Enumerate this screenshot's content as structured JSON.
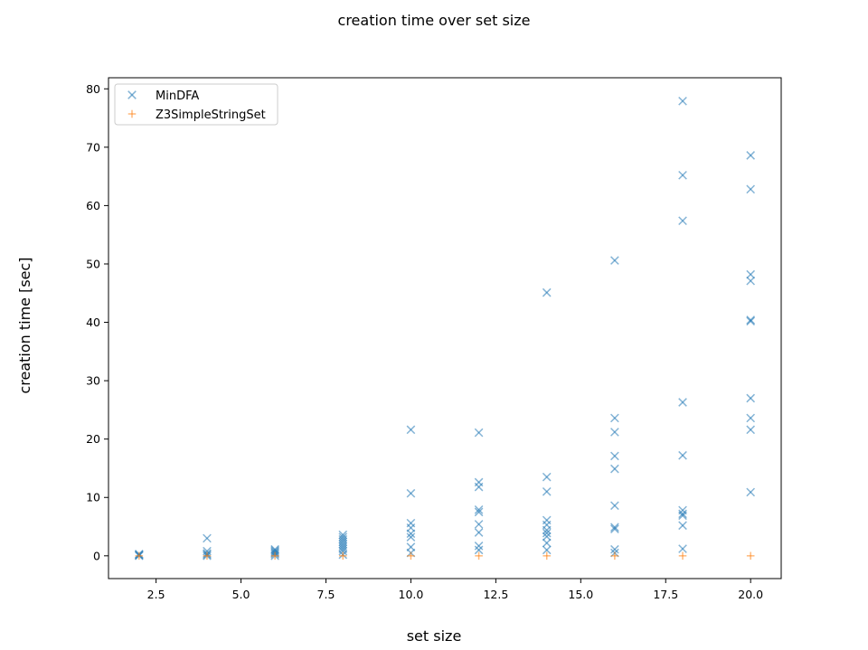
{
  "chart_data": {
    "type": "scatter",
    "title": "creation time over set size",
    "xlabel": "set size",
    "ylabel": "creation time [sec]",
    "xlim": [
      1.1,
      20.9
    ],
    "ylim": [
      -3.9,
      81.9
    ],
    "xticks": [
      2.5,
      5.0,
      7.5,
      10.0,
      12.5,
      15.0,
      17.5,
      20.0
    ],
    "xtick_labels": [
      "2.5",
      "5.0",
      "7.5",
      "10.0",
      "12.5",
      "15.0",
      "17.5",
      "20.0"
    ],
    "yticks": [
      0,
      10,
      20,
      30,
      40,
      50,
      60,
      70,
      80
    ],
    "ytick_labels": [
      "0",
      "10",
      "20",
      "30",
      "40",
      "50",
      "60",
      "70",
      "80"
    ],
    "grid": false,
    "legend_position": "top-left",
    "series": [
      {
        "name": "MinDFA",
        "marker": "x",
        "color": "#1f77b4",
        "points": [
          [
            2,
            0.0
          ],
          [
            2,
            0.1
          ],
          [
            2,
            0.2
          ],
          [
            2,
            0.3
          ],
          [
            4,
            0.0
          ],
          [
            4,
            0.2
          ],
          [
            4,
            0.4
          ],
          [
            4,
            0.8
          ],
          [
            4,
            3.0
          ],
          [
            6,
            0.0
          ],
          [
            6,
            0.3
          ],
          [
            6,
            0.5
          ],
          [
            6,
            0.7
          ],
          [
            6,
            0.9
          ],
          [
            6,
            1.1
          ],
          [
            8,
            0.2
          ],
          [
            8,
            0.8
          ],
          [
            8,
            1.2
          ],
          [
            8,
            1.6
          ],
          [
            8,
            2.0
          ],
          [
            8,
            2.4
          ],
          [
            8,
            2.8
          ],
          [
            8,
            3.2
          ],
          [
            8,
            3.6
          ],
          [
            10,
            0.5
          ],
          [
            10,
            1.5
          ],
          [
            10,
            3.2
          ],
          [
            10,
            3.8
          ],
          [
            10,
            4.8
          ],
          [
            10,
            5.6
          ],
          [
            10,
            10.7
          ],
          [
            10,
            21.6
          ],
          [
            12,
            1.0
          ],
          [
            12,
            1.7
          ],
          [
            12,
            4.0
          ],
          [
            12,
            5.4
          ],
          [
            12,
            7.5
          ],
          [
            12,
            7.9
          ],
          [
            12,
            11.8
          ],
          [
            12,
            12.6
          ],
          [
            12,
            21.1
          ],
          [
            14,
            1.0
          ],
          [
            14,
            2.2
          ],
          [
            14,
            3.3
          ],
          [
            14,
            3.9
          ],
          [
            14,
            4.4
          ],
          [
            14,
            5.3
          ],
          [
            14,
            6.1
          ],
          [
            14,
            11.0
          ],
          [
            14,
            13.5
          ],
          [
            14,
            45.1
          ],
          [
            16,
            0.5
          ],
          [
            16,
            1.1
          ],
          [
            16,
            4.6
          ],
          [
            16,
            4.9
          ],
          [
            16,
            8.6
          ],
          [
            16,
            14.9
          ],
          [
            16,
            17.1
          ],
          [
            16,
            21.2
          ],
          [
            16,
            23.6
          ],
          [
            16,
            50.6
          ],
          [
            18,
            1.2
          ],
          [
            18,
            5.2
          ],
          [
            18,
            6.9
          ],
          [
            18,
            7.2
          ],
          [
            18,
            7.8
          ],
          [
            18,
            17.2
          ],
          [
            18,
            26.3
          ],
          [
            18,
            57.4
          ],
          [
            18,
            65.2
          ],
          [
            18,
            77.9
          ],
          [
            20,
            10.9
          ],
          [
            20,
            21.6
          ],
          [
            20,
            23.6
          ],
          [
            20,
            27.0
          ],
          [
            20,
            40.2
          ],
          [
            20,
            40.4
          ],
          [
            20,
            47.1
          ],
          [
            20,
            48.2
          ],
          [
            20,
            62.8
          ],
          [
            20,
            68.6
          ]
        ]
      },
      {
        "name": "Z3SimpleStringSet",
        "marker": "+",
        "color": "#ff7f0e",
        "points": [
          [
            2,
            0.0
          ],
          [
            4,
            0.0
          ],
          [
            6,
            0.0
          ],
          [
            8,
            0.0
          ],
          [
            10,
            0.0
          ],
          [
            12,
            0.0
          ],
          [
            14,
            0.0
          ],
          [
            16,
            0.0
          ],
          [
            18,
            0.0
          ],
          [
            20,
            0.0
          ]
        ]
      }
    ]
  }
}
